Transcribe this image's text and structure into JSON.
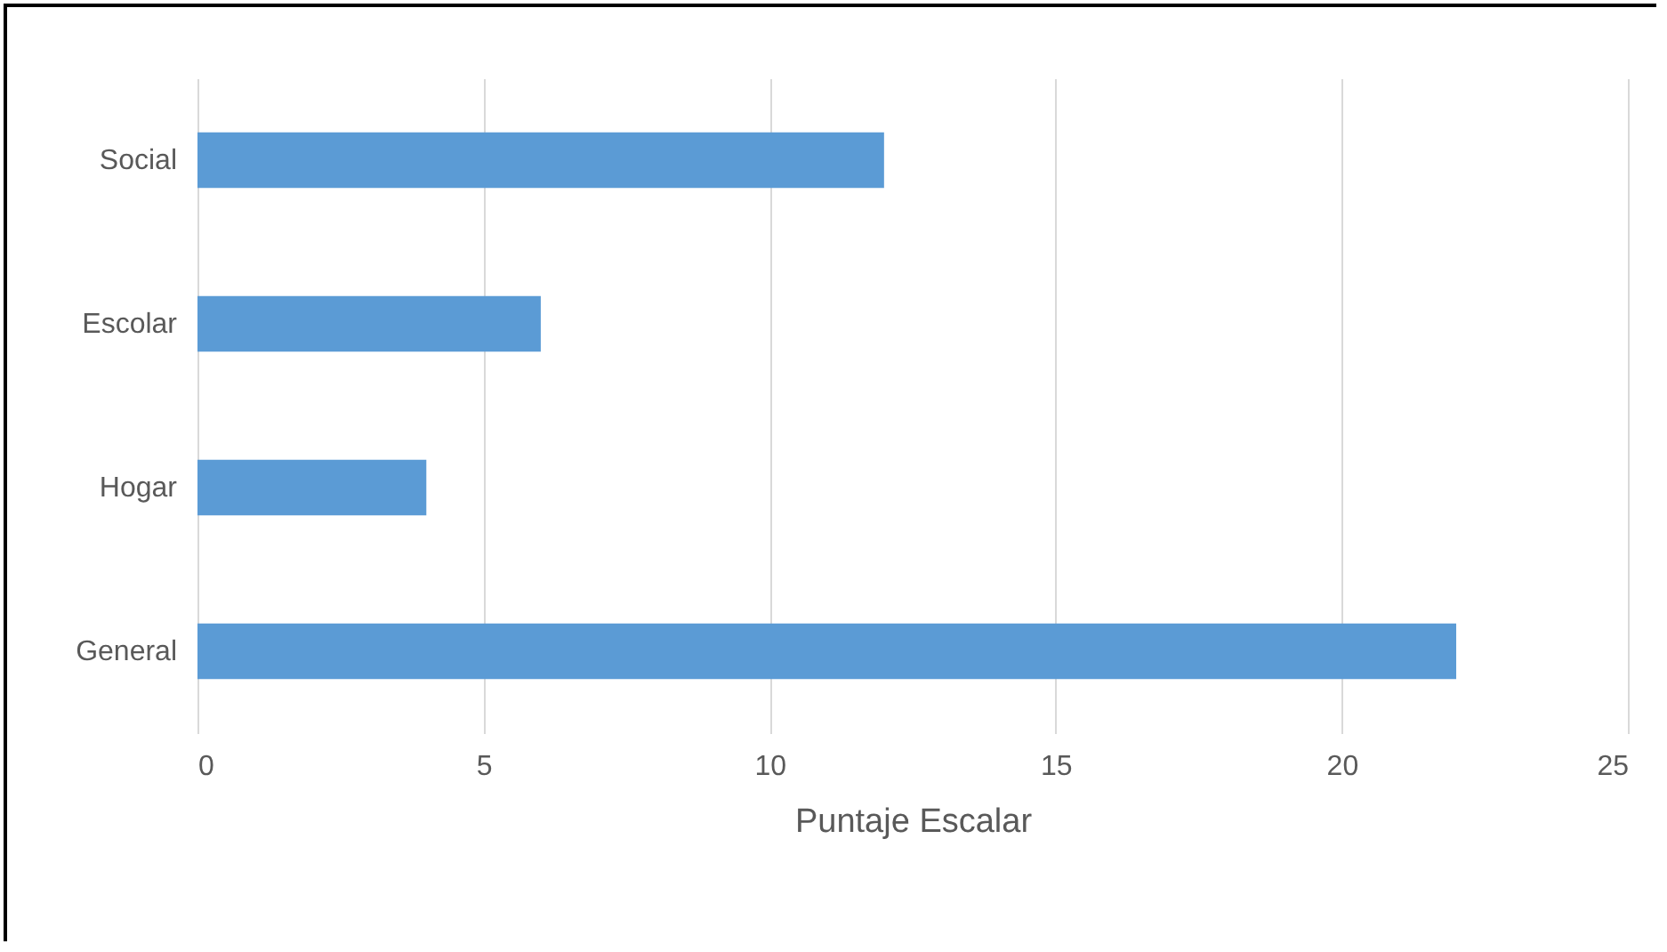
{
  "chart_data": {
    "type": "bar",
    "orientation": "horizontal",
    "xlabel": "Puntaje Escalar",
    "categories": [
      "Social",
      "Escolar",
      "Hogar",
      "General"
    ],
    "values": [
      12,
      6,
      4,
      22
    ],
    "color": "#5b9bd5",
    "xlim": [
      0,
      25
    ],
    "xticks": [
      0,
      5,
      10,
      15,
      20,
      25
    ],
    "grid": "x"
  }
}
